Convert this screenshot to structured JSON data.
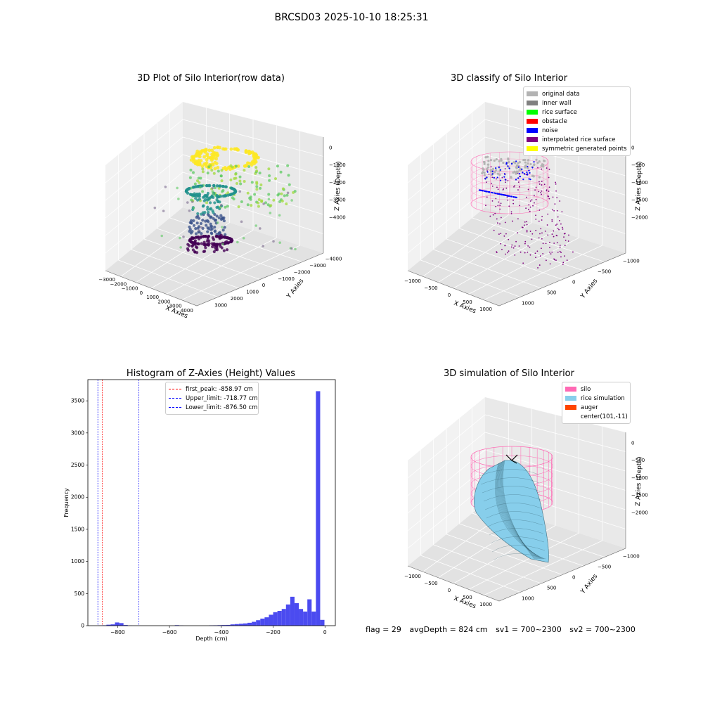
{
  "suptitle": "BRCSD03 2025-10-10 18:25:31",
  "footer": {
    "flag": "flag = 29",
    "avg": "avgDepth = 824 cm",
    "sv1": "sv1 = 700~2300",
    "sv2": "sv2 = 700~2300"
  },
  "colors": {
    "viridis": [
      "#440154",
      "#3b528b",
      "#21918c",
      "#5ec962",
      "#fde725"
    ],
    "original": "#b3b3b3",
    "wall": "#808080",
    "surface": "#00ff00",
    "obstacle": "#ff0000",
    "noise": "#0000ff",
    "interp": "#800080",
    "symmetric": "#ffff00",
    "silo": "#ff69b4",
    "rice": "#87ceeb",
    "auger": "#ff4500",
    "hist": "#4b4bf0"
  },
  "chart_data": [
    {
      "type": "scatter",
      "subtype": "3d",
      "title": "3D Plot of Silo Interior(row data)",
      "xlabel": "X Axies",
      "ylabel": "Y Axies",
      "zlabel": "Z Axies (Depth)",
      "xticks": [
        "−3000",
        "−2000",
        "−1000",
        "0",
        "1000",
        "2000",
        "3000",
        "4000"
      ],
      "yticks": [
        "3000",
        "2000",
        "1000",
        "0",
        "−1000",
        "−2000",
        "−3000",
        "−4000"
      ],
      "zticks": [
        "0",
        "−1000",
        "−2000",
        "−3000",
        "−4000"
      ],
      "colormap": "viridis"
    },
    {
      "type": "scatter",
      "subtype": "3d",
      "title": "3D classify of Silo Interior",
      "xlabel": "X Axies",
      "ylabel": "Y Axies",
      "zlabel": "Z Axies (Depth)",
      "xticks": [
        "−1000",
        "−500",
        "0",
        "500",
        "1000"
      ],
      "yticks": [
        "1000",
        "500",
        "0",
        "−500",
        "−1000"
      ],
      "zticks": [
        "0",
        "−500",
        "−1000",
        "−1500",
        "−2000"
      ],
      "legend": [
        "original data",
        "inner wall",
        "rice surface",
        "obstacle",
        "noise",
        "interpolated rice surface",
        "symmetric generated points"
      ],
      "legend_position": "upper right"
    },
    {
      "type": "bar",
      "title": "Histogram of Z-Axies (Height) Values",
      "xlabel": "Depth (cm)",
      "ylabel": "Frequency",
      "xlim": [
        -915,
        40
      ],
      "ylim": [
        0,
        3830
      ],
      "xticks": [
        "−800",
        "−600",
        "−400",
        "−200",
        "0"
      ],
      "xtick_values": [
        -800,
        -600,
        -400,
        -200,
        0
      ],
      "yticks": [
        "0",
        "500",
        "1000",
        "1500",
        "2000",
        "2500",
        "3000",
        "3500"
      ],
      "ytick_values": [
        0,
        500,
        1000,
        1500,
        2000,
        2500,
        3000,
        3500
      ],
      "bin_width": 16.5,
      "bin_starts": [
        -876.5,
        -860,
        -843.5,
        -827,
        -810.5,
        -794,
        -777.5,
        -761,
        -744.5,
        -728,
        -711.5,
        -695,
        -678.5,
        -662,
        -645.5,
        -629,
        -612.5,
        -596,
        -579.5,
        -563,
        -546.5,
        -530,
        -513.5,
        -497,
        -480.5,
        -464,
        -447.5,
        -431,
        -414.5,
        -398,
        -381.5,
        -365,
        -348.5,
        -332,
        -315.5,
        -299,
        -282.5,
        -266,
        -249.5,
        -233,
        -216.5,
        -200,
        -183.5,
        -167,
        -150.5,
        -134,
        -117.5,
        -101,
        -84.5,
        -68,
        -51.5,
        -35,
        -18.5
      ],
      "values": [
        3,
        6,
        15,
        20,
        50,
        40,
        10,
        2,
        1,
        1,
        0,
        0,
        0,
        0,
        0,
        0,
        0,
        0,
        8,
        3,
        0,
        0,
        0,
        0,
        0,
        0,
        5,
        6,
        8,
        10,
        12,
        20,
        25,
        30,
        35,
        45,
        60,
        85,
        110,
        130,
        170,
        210,
        230,
        260,
        330,
        450,
        350,
        260,
        220,
        410,
        220,
        3650,
        90
      ],
      "vlines": [
        {
          "label": "first_peak: -858.97 cm",
          "x": -858.97,
          "color": "#ff0000"
        },
        {
          "label": "Upper_limit: -718.77 cm",
          "x": -718.77,
          "color": "#0000ff"
        },
        {
          "label": "Lower_limit: -876.50 cm",
          "x": -876.5,
          "color": "#0000ff"
        }
      ],
      "legend_position": "upper center"
    },
    {
      "type": "area",
      "subtype": "3d-surface",
      "title": "3D simulation of Silo Interior",
      "xlabel": "X Axies",
      "ylabel": "Y Axies",
      "zlabel": "Z Axies (Depth)",
      "xticks": [
        "−1000",
        "−500",
        "0",
        "500",
        "1000"
      ],
      "yticks": [
        "1000",
        "500",
        "0",
        "−500",
        "−1000"
      ],
      "zticks": [
        "0",
        "−500",
        "−1000",
        "−1500",
        "−2000"
      ],
      "legend": [
        "silo",
        "rice simulation",
        "auger",
        "center(101,-11)"
      ],
      "legend_position": "upper right"
    }
  ]
}
